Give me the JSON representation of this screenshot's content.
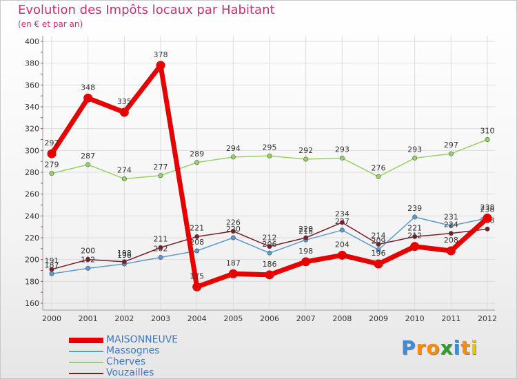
{
  "header": {
    "title": "Evolution des Impôts locaux par Habitant",
    "subtitle": "(en € et par an)"
  },
  "chart_data": {
    "type": "line",
    "title": "Evolution des Impôts locaux par Habitant",
    "ylabel": "(en € et par an)",
    "xlabel": "",
    "categories": [
      "2000",
      "2001",
      "2002",
      "2003",
      "2004",
      "2005",
      "2006",
      "2007",
      "2008",
      "2009",
      "2010",
      "2011",
      "2012"
    ],
    "ylim": [
      160,
      400
    ],
    "yticks": [
      160,
      180,
      200,
      220,
      240,
      260,
      280,
      300,
      320,
      340,
      360,
      380,
      400
    ],
    "grid": true,
    "legend_position": "bottom-left",
    "series": [
      {
        "name": "MAISONNEUVE",
        "color": "#e60000",
        "values": [
          297,
          348,
          335,
          378,
          175,
          187,
          186,
          198,
          204,
          196,
          212,
          208,
          238
        ]
      },
      {
        "name": "Massognes",
        "color": "#5a9ad2",
        "values": [
          187,
          192,
          196,
          202,
          208,
          220,
          206,
          218,
          227,
          209,
          239,
          231,
          238
        ]
      },
      {
        "name": "Cherves",
        "color": "#96d264",
        "values": [
          279,
          287,
          274,
          277,
          289,
          294,
          295,
          292,
          293,
          276,
          293,
          297,
          310
        ]
      },
      {
        "name": "Vouzailles",
        "color": "#781e28",
        "values": [
          191,
          200,
          198,
          211,
          221,
          226,
          212,
          220,
          234,
          214,
          221,
          224,
          228
        ]
      }
    ],
    "labels": {
      "MAISONNEUVE": [
        "297",
        "348",
        "335",
        "378",
        "175",
        "187",
        "186",
        "198",
        "204",
        "196",
        "212",
        "208",
        "238"
      ],
      "Massognes": [
        "187",
        "192",
        "196",
        "202",
        "208",
        "220",
        "206",
        "218",
        "227",
        "209",
        "239",
        "231",
        "238"
      ],
      "Cherves": [
        "279",
        "287",
        "274",
        "277",
        "289",
        "294",
        "295",
        "292",
        "293",
        "276",
        "293",
        "297",
        "310"
      ],
      "Vouzailles": [
        "191",
        "200",
        "198",
        "211",
        "221",
        "226",
        "212",
        "220",
        "234",
        "214",
        "221",
        "224",
        "228"
      ]
    }
  },
  "logo": {
    "letters": [
      "P",
      "r",
      "o",
      "x",
      "i",
      "t",
      "i"
    ],
    "colors": [
      "#3c8cdc",
      "#ff8c00",
      "#ff8c00",
      "#2aa02a",
      "#3c8cdc",
      "#ff8c00",
      "#e6c800"
    ]
  }
}
